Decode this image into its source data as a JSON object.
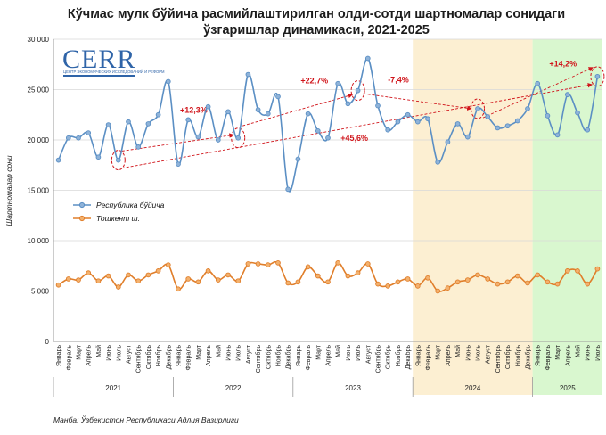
{
  "title_line1": "Кўчмас мулк бўйича расмийлаштирилган олди-сотди шартномалар сонидаги",
  "title_line2": "ўзгаришлар динамикаси, 2021-2025",
  "source": "Манба: Ўзбекистон Республикаси Адлия Вазирлиги",
  "logo": {
    "name": "CERR",
    "subtitle": "ЦЕНТР ЭКОНОМИЧЕСКИХ ИССЛЕДОВАНИЙ И РЕФОРМ"
  },
  "colors": {
    "republic": "#5b8fc4",
    "tashkent": "#e07e2a",
    "annotation": "#d0141a",
    "zone2024": "#fcefd2",
    "zone2025": "#d9f7cf"
  },
  "chart_data": {
    "type": "line",
    "ylabel": "Шартномалар сони",
    "ylim": [
      0,
      30000
    ],
    "yticks": [
      "0",
      "5 000",
      "10 000",
      "15 000",
      "20 000",
      "25 000",
      "30 000"
    ],
    "grid": true,
    "legend_position": "left-center",
    "month_names": [
      "Январь",
      "Февраль",
      "Март",
      "Апрель",
      "Май",
      "Июнь",
      "Июль",
      "Август",
      "Сентябрь",
      "Октябрь",
      "Ноябрь",
      "Декабрь"
    ],
    "years": [
      {
        "label": "2021",
        "months": 12
      },
      {
        "label": "2022",
        "months": 12
      },
      {
        "label": "2023",
        "months": 12
      },
      {
        "label": "2024",
        "months": 12
      },
      {
        "label": "2025",
        "months": 7
      }
    ],
    "series": [
      {
        "name": "Республика бўйича",
        "values": [
          18000,
          20200,
          20200,
          20700,
          18300,
          21500,
          18000,
          21800,
          19300,
          21600,
          22500,
          25800,
          17600,
          22000,
          20300,
          23300,
          20000,
          22800,
          20200,
          26500,
          23000,
          22600,
          24300,
          15100,
          18100,
          22600,
          20900,
          20200,
          25600,
          23600,
          24900,
          28100,
          23400,
          21000,
          21800,
          22500,
          21800,
          22100,
          17800,
          19800,
          21600,
          20300,
          23100,
          22300,
          21200,
          21400,
          21900,
          23100,
          25600,
          22400,
          20500,
          24500,
          22700,
          21000,
          26300
        ]
      },
      {
        "name": "Тошкент ш.",
        "values": [
          5600,
          6200,
          6100,
          6800,
          6000,
          6500,
          5400,
          6600,
          6000,
          6600,
          7000,
          7600,
          5200,
          6200,
          5900,
          7000,
          6100,
          6600,
          6000,
          7700,
          7700,
          7600,
          7800,
          5800,
          5900,
          7400,
          6500,
          5900,
          7800,
          6500,
          6800,
          7700,
          5700,
          5500,
          5900,
          6200,
          5500,
          6300,
          5000,
          5300,
          5900,
          6100,
          6600,
          6200,
          5700,
          5900,
          6500,
          5800,
          6600,
          5900,
          5700,
          7000,
          7000,
          5700,
          7200
        ]
      }
    ],
    "annotations": [
      "+12,3%",
      "+22,7%",
      "-7,4%",
      "+45,6%",
      "+14,2%"
    ]
  }
}
